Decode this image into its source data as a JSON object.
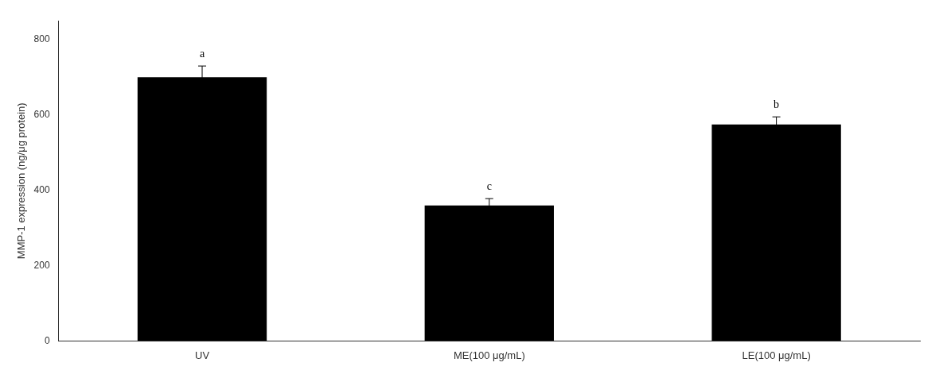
{
  "chart_data": {
    "type": "bar",
    "categories": [
      "UV",
      "ME(100 μg/mL)",
      "LE(100 μg/mL)"
    ],
    "values": [
      700,
      360,
      575
    ],
    "errors": [
      30,
      18,
      20
    ],
    "color": "#000000",
    "ylabel": "MMP-1 expression (ng/μg protein)",
    "ylim": [
      0,
      850
    ],
    "yticks": [
      0,
      200,
      400,
      600,
      800
    ],
    "grid": false,
    "annotations": [
      {
        "category": "UV",
        "text": "a"
      },
      {
        "category": "ME(100 μg/mL)",
        "text": "c"
      },
      {
        "category": "LE(100 μg/mL)",
        "text": "b"
      }
    ]
  }
}
